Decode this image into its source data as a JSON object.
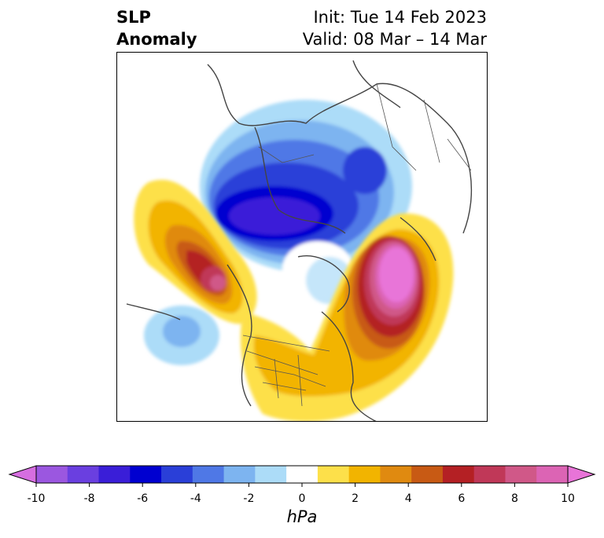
{
  "header": {
    "variable": "SLP",
    "variable_line2": "Anomaly",
    "init_label": "Init: Tue 14 Feb 2023",
    "valid_label": "Valid: 08 Mar – 14 Mar"
  },
  "colorbar": {
    "unit": "hPa",
    "ticks": [
      "-10",
      "-8",
      "-6",
      "-4",
      "-2",
      "0",
      "2",
      "4",
      "6",
      "8",
      "10"
    ],
    "colors": [
      "#d66ee0",
      "#9b57e0",
      "#6a3fe0",
      "#3a1ed8",
      "#0000d0",
      "#2a3fd8",
      "#4f78e6",
      "#7db4f0",
      "#acdcf8",
      "#ffffff",
      "#fde04a",
      "#f2b400",
      "#e08a10",
      "#c85a14",
      "#b42024",
      "#c03858",
      "#d05888",
      "#dc64b4",
      "#e874d8"
    ]
  },
  "chart_data": {
    "type": "heatmap",
    "title": "SLP Anomaly",
    "value_range": [
      -10,
      10
    ],
    "colorbar_extend": "both"
  }
}
